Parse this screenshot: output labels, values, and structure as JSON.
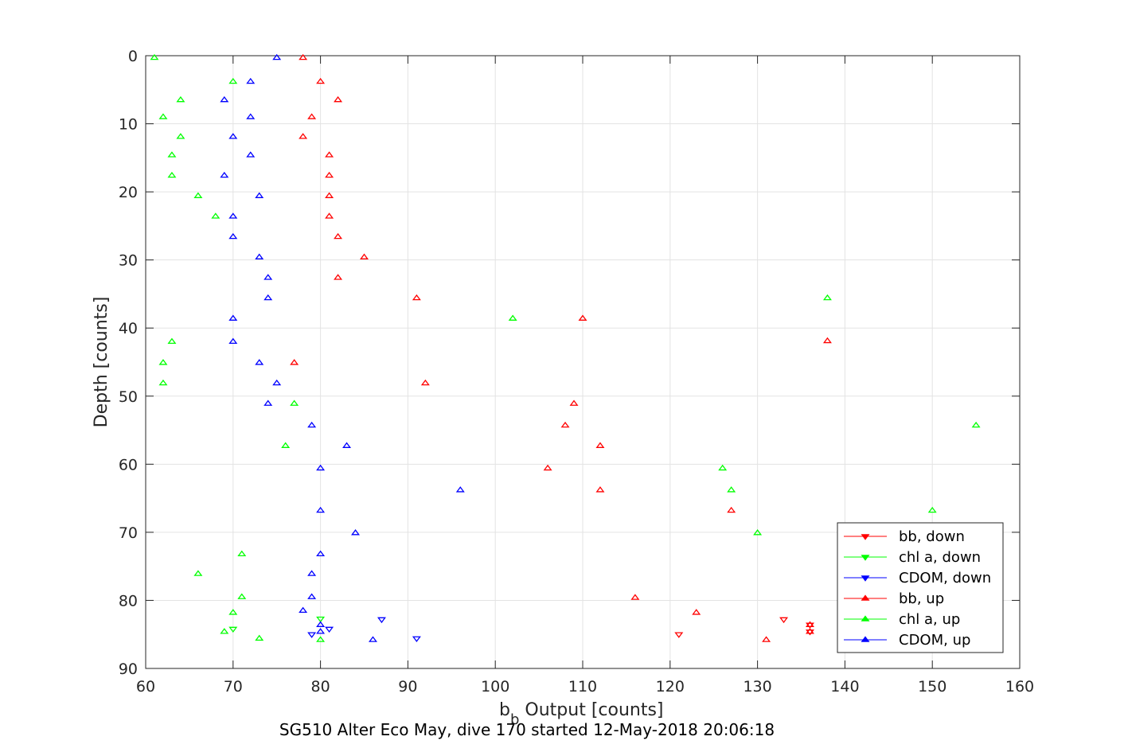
{
  "chart_data": {
    "type": "scatter",
    "xlabel_main": "b",
    "xlabel_sub": "b",
    "xlabel_rest": " Output [counts]",
    "ylabel": "Depth [counts]",
    "title": "SG510 Alter Eco May, dive 170 started 12-May-2018 20:06:18",
    "xlim": [
      60,
      160
    ],
    "ylim": [
      0,
      90
    ],
    "y_reversed": true,
    "grid": true,
    "legend_position": "bottom-right",
    "xticks": [
      "60",
      "70",
      "80",
      "90",
      "100",
      "110",
      "120",
      "130",
      "140",
      "150",
      "160"
    ],
    "yticks": [
      "0",
      "10",
      "20",
      "30",
      "40",
      "50",
      "60",
      "70",
      "80",
      "90"
    ],
    "series": [
      {
        "name": "bb, down",
        "color": "#ff0000",
        "marker": "triangle-down",
        "points": [
          [
            121,
            85
          ],
          [
            133,
            82.8
          ],
          [
            136,
            83.6
          ],
          [
            136,
            84.6
          ]
        ]
      },
      {
        "name": "chl a, down",
        "color": "#00ff00",
        "marker": "triangle-down",
        "points": [
          [
            70,
            84.2
          ],
          [
            80,
            82.7
          ]
        ]
      },
      {
        "name": "CDOM, down",
        "color": "#0000ff",
        "marker": "triangle-down",
        "points": [
          [
            79,
            85
          ],
          [
            81,
            84.2
          ],
          [
            87,
            82.8
          ],
          [
            91,
            85.6
          ]
        ]
      },
      {
        "name": "bb, up",
        "color": "#ff0000",
        "marker": "triangle-up",
        "points": [
          [
            78,
            0.3
          ],
          [
            80,
            3.8
          ],
          [
            82,
            6.5
          ],
          [
            79,
            9
          ],
          [
            78,
            11.9
          ],
          [
            81,
            14.6
          ],
          [
            81,
            17.6
          ],
          [
            81,
            20.6
          ],
          [
            81,
            23.6
          ],
          [
            82,
            26.6
          ],
          [
            85,
            29.6
          ],
          [
            82,
            32.6
          ],
          [
            91,
            35.6
          ],
          [
            110,
            38.6
          ],
          [
            138,
            41.9
          ],
          [
            77,
            45.1
          ],
          [
            92,
            48.1
          ],
          [
            109,
            51.1
          ],
          [
            108,
            54.3
          ],
          [
            112,
            57.3
          ],
          [
            106,
            60.6
          ],
          [
            112,
            63.8
          ],
          [
            127,
            66.8
          ],
          [
            116,
            79.6
          ],
          [
            123,
            81.8
          ],
          [
            136,
            83.6
          ],
          [
            136,
            84.6
          ],
          [
            131,
            85.8
          ]
        ]
      },
      {
        "name": "chl a, up",
        "color": "#00ff00",
        "marker": "triangle-up",
        "points": [
          [
            61,
            0.3
          ],
          [
            70,
            3.8
          ],
          [
            64,
            6.5
          ],
          [
            62,
            9
          ],
          [
            64,
            11.9
          ],
          [
            63,
            14.6
          ],
          [
            63,
            17.6
          ],
          [
            66,
            20.6
          ],
          [
            68,
            23.6
          ],
          [
            138,
            35.6
          ],
          [
            102,
            38.6
          ],
          [
            63,
            42
          ],
          [
            62,
            45.1
          ],
          [
            62,
            48.1
          ],
          [
            77,
            51.1
          ],
          [
            155,
            54.3
          ],
          [
            76,
            57.3
          ],
          [
            126,
            60.6
          ],
          [
            127,
            63.8
          ],
          [
            150,
            66.8
          ],
          [
            130,
            70.1
          ],
          [
            71,
            73.2
          ],
          [
            66,
            76.1
          ],
          [
            71,
            79.5
          ],
          [
            70,
            81.8
          ],
          [
            69,
            84.6
          ],
          [
            73,
            85.6
          ],
          [
            80,
            85.8
          ]
        ]
      },
      {
        "name": "CDOM, up",
        "color": "#0000ff",
        "marker": "triangle-up",
        "points": [
          [
            75,
            0.3
          ],
          [
            72,
            3.8
          ],
          [
            69,
            6.5
          ],
          [
            72,
            9
          ],
          [
            70,
            11.9
          ],
          [
            72,
            14.6
          ],
          [
            69,
            17.6
          ],
          [
            73,
            20.6
          ],
          [
            70,
            23.6
          ],
          [
            70,
            26.6
          ],
          [
            73,
            29.6
          ],
          [
            74,
            32.6
          ],
          [
            74,
            35.6
          ],
          [
            70,
            38.6
          ],
          [
            70,
            42
          ],
          [
            73,
            45.1
          ],
          [
            75,
            48.1
          ],
          [
            74,
            51.1
          ],
          [
            79,
            54.3
          ],
          [
            83,
            57.3
          ],
          [
            80,
            60.6
          ],
          [
            96,
            63.8
          ],
          [
            80,
            66.8
          ],
          [
            84,
            70.1
          ],
          [
            80,
            73.2
          ],
          [
            79,
            76.1
          ],
          [
            79,
            79.5
          ],
          [
            78,
            81.5
          ],
          [
            80,
            83.6
          ],
          [
            80,
            84.6
          ],
          [
            86,
            85.8
          ]
        ]
      }
    ]
  }
}
